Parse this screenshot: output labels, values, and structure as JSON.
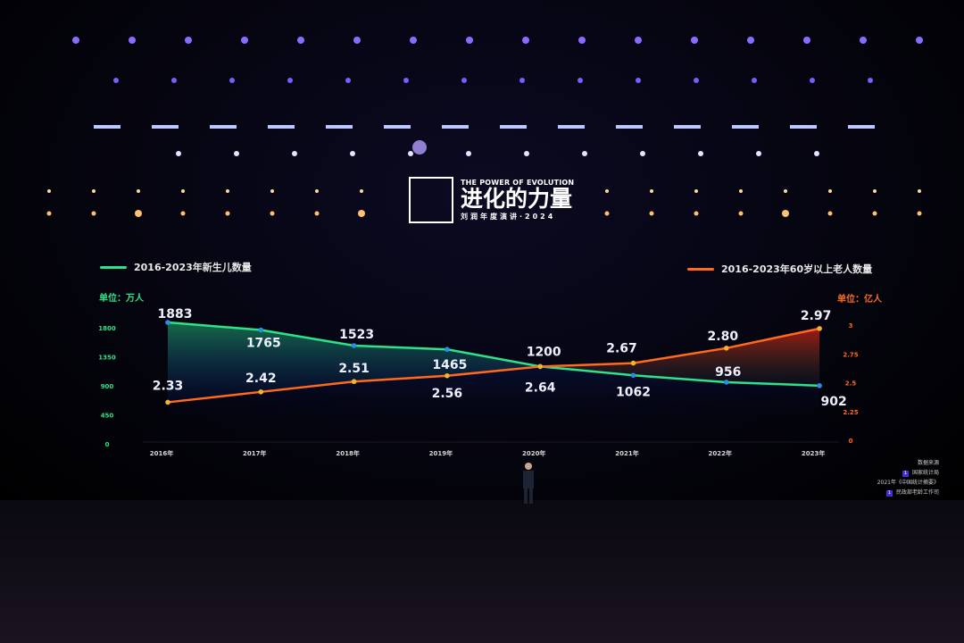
{
  "logo": {
    "en": "THE POWER OF EVOLUTION",
    "cn": "进化的力量",
    "sub": "刘润年度演讲·2024"
  },
  "source": {
    "title": "数据来源",
    "items": [
      "国家统计局",
      "2021年《中国统计摘要》",
      "民政部老龄工作司"
    ],
    "badge": "1"
  },
  "colors": {
    "births": "#2de38a",
    "elderly": "#ff6a1f",
    "births_point": "#2a8fe0",
    "elderly_point": "#f5b32a",
    "background": "#000000"
  },
  "chart_data": {
    "type": "line",
    "categories": [
      "2016年",
      "2017年",
      "2018年",
      "2019年",
      "2020年",
      "2021年",
      "2022年",
      "2023年"
    ],
    "series": [
      {
        "name": "2016-2023年新生儿数量",
        "unit": "单位：万人",
        "axis": "left",
        "values": [
          1883,
          1765,
          1523,
          1465,
          1200,
          1062,
          956,
          902
        ]
      },
      {
        "name": "2016-2023年60岁以上老人数量",
        "unit": "单位：亿人",
        "axis": "right",
        "values": [
          2.33,
          2.42,
          2.51,
          2.56,
          2.64,
          2.67,
          2.8,
          2.97
        ]
      }
    ],
    "data_labels": [
      [
        "1883",
        "1765",
        "1523",
        "1465",
        "1200",
        "1062",
        "956",
        "902"
      ],
      [
        "2.33",
        "2.42",
        "2.51",
        "2.56",
        "2.64",
        "2.67",
        "2.80",
        "2.97"
      ]
    ],
    "left_axis": {
      "ticks": [
        "0",
        "450",
        "900",
        "1350",
        "1800"
      ],
      "tick_values": [
        0,
        450,
        900,
        1350,
        1800
      ],
      "ylim": [
        0,
        1800
      ]
    },
    "right_axis": {
      "ticks": [
        "0",
        "2.25",
        "2.5",
        "2.75",
        "3"
      ],
      "tick_values": [
        0,
        2.25,
        2.5,
        2.75,
        3
      ],
      "ylim": [
        0,
        3
      ],
      "broken": true
    },
    "grid": false,
    "legend": [
      "top-left",
      "top-right"
    ]
  }
}
